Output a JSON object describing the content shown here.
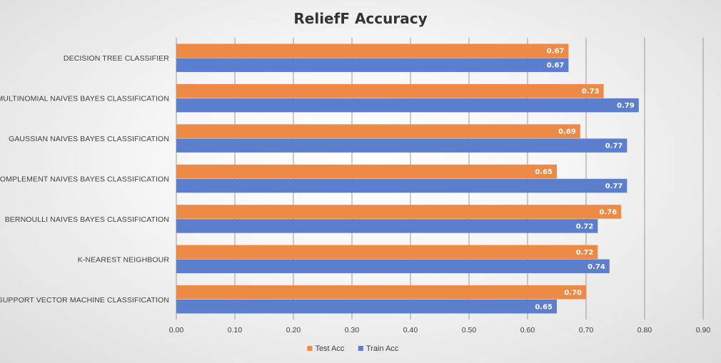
{
  "chart_data": {
    "type": "bar",
    "orientation": "horizontal",
    "title": "ReliefF Accuracy",
    "categories": [
      "DECISION TREE CLASSIFIER",
      "MULTINOMIAL NAIVES BAYES CLASSIFICATION",
      "GAUSSIAN NAIVES BAYES CLASSIFICATION",
      "COMPLEMENT NAIVES BAYES CLASSIFICATION",
      "BERNOULLI NAIVES BAYES CLASSIFICATION",
      "K-NEAREST NEIGHBOUR",
      "SUPPORT VECTOR MACHINE CLASSIFICATION"
    ],
    "series": [
      {
        "name": "Test Acc",
        "color": "#ED8A45",
        "values": [
          0.67,
          0.73,
          0.69,
          0.65,
          0.76,
          0.72,
          0.7
        ],
        "labels": [
          "0.67",
          "0.73",
          "0.69",
          "0.65",
          "0.76",
          "0.72",
          "0.70"
        ]
      },
      {
        "name": "Train Acc",
        "color": "#5B7FCC",
        "values": [
          0.67,
          0.79,
          0.77,
          0.77,
          0.72,
          0.74,
          0.65
        ],
        "labels": [
          "0.67",
          "0.79",
          "0.77",
          "0.77",
          "0.72",
          "0.74",
          "0.65"
        ]
      }
    ],
    "xlim": [
      0,
      0.9
    ],
    "xticks": [
      0,
      0.1,
      0.2,
      0.3,
      0.4,
      0.5,
      0.6,
      0.7,
      0.8,
      0.9
    ],
    "xtick_labels": [
      "0.00",
      "0.10",
      "0.20",
      "0.30",
      "0.40",
      "0.50",
      "0.60",
      "0.70",
      "0.80",
      "0.90"
    ],
    "xlabel": "",
    "ylabel": "",
    "grid": true,
    "legend": "bottom"
  }
}
